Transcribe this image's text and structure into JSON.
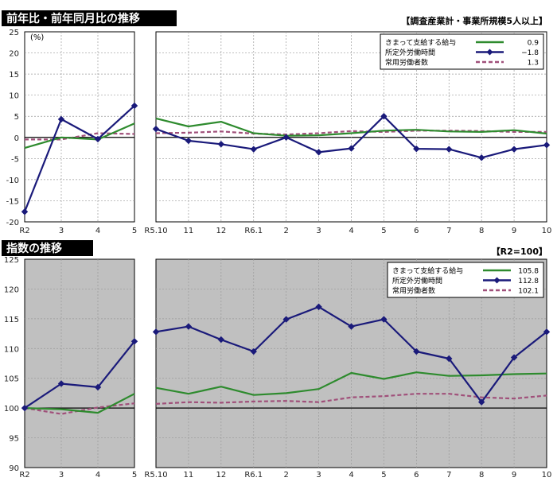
{
  "chart_data": [
    {
      "type": "line",
      "title": "前年比・前年同月比の推移",
      "note": "【調査産業計・事業所規模5人以上】",
      "unit": "(%)",
      "ylim": [
        -20,
        25
      ],
      "yticks": [
        -20,
        -15,
        -10,
        -5,
        0,
        5,
        10,
        15,
        20,
        25
      ],
      "grid": true,
      "background": "white",
      "legend_position": "top-right",
      "panels": [
        {
          "x": [
            "R2",
            "3",
            "4",
            "5"
          ],
          "series": [
            {
              "name": "きまって支給する給与",
              "values": [
                -2.5,
                0.0,
                -0.5,
                3.3
              ]
            },
            {
              "name": "所定外労働時間",
              "values": [
                -17.6,
                4.3,
                -0.4,
                7.5
              ]
            },
            {
              "name": "常用労働者数",
              "values": [
                -0.5,
                -0.5,
                1.0,
                0.8
              ]
            }
          ]
        },
        {
          "x": [
            "R5.10",
            "11",
            "12",
            "R6.1",
            "2",
            "3",
            "4",
            "5",
            "6",
            "7",
            "8",
            "9",
            "10"
          ],
          "series": [
            {
              "name": "きまって支給する給与",
              "values": [
                4.5,
                2.6,
                3.7,
                1.0,
                0.4,
                0.5,
                1.0,
                1.6,
                1.8,
                1.4,
                1.3,
                1.7,
                0.9
              ]
            },
            {
              "name": "所定外労働時間",
              "values": [
                2.0,
                -0.8,
                -1.6,
                -2.8,
                0.0,
                -3.5,
                -2.6,
                5.0,
                -2.7,
                -2.8,
                -4.8,
                -2.8,
                -1.8
              ]
            },
            {
              "name": "常用労働者数",
              "values": [
                1.0,
                1.1,
                1.4,
                0.9,
                0.7,
                1.0,
                1.5,
                1.3,
                1.6,
                1.6,
                1.5,
                1.3,
                1.3
              ]
            }
          ]
        }
      ],
      "legend": [
        {
          "name": "きまって支給する給与",
          "value": "0.9"
        },
        {
          "name": "所定外労働時間",
          "value": "−1.8"
        },
        {
          "name": "常用労働者数",
          "value": "1.3"
        }
      ]
    },
    {
      "type": "line",
      "title": "指数の推移",
      "note": "【R2=100】",
      "ylim": [
        90,
        125
      ],
      "yticks": [
        90,
        95,
        100,
        105,
        110,
        115,
        120,
        125
      ],
      "grid": true,
      "background": "gray",
      "legend_position": "top-right",
      "panels": [
        {
          "x": [
            "R2",
            "3",
            "4",
            "5"
          ],
          "series": [
            {
              "name": "きまって支給する給与",
              "values": [
                100.0,
                99.8,
                99.2,
                102.4
              ]
            },
            {
              "name": "所定外労働時間",
              "values": [
                100.0,
                104.1,
                103.5,
                111.2
              ]
            },
            {
              "name": "常用労働者数",
              "values": [
                100.0,
                99.0,
                100.1,
                100.8
              ]
            }
          ]
        },
        {
          "x": [
            "R5.10",
            "11",
            "12",
            "R6.1",
            "2",
            "3",
            "4",
            "5",
            "6",
            "7",
            "8",
            "9",
            "10"
          ],
          "series": [
            {
              "name": "きまって支給する給与",
              "values": [
                103.4,
                102.4,
                103.6,
                102.2,
                102.5,
                103.2,
                105.9,
                104.9,
                106.0,
                105.4,
                105.5,
                105.7,
                105.8
              ]
            },
            {
              "name": "所定外労働時間",
              "values": [
                112.8,
                113.7,
                111.5,
                109.5,
                114.9,
                117.0,
                113.7,
                114.9,
                109.5,
                108.3,
                101.0,
                108.5,
                112.8
              ]
            },
            {
              "name": "常用労働者数",
              "values": [
                100.7,
                101.0,
                100.9,
                101.1,
                101.2,
                101.0,
                101.8,
                102.0,
                102.4,
                102.4,
                101.8,
                101.6,
                102.1
              ]
            }
          ]
        }
      ],
      "legend": [
        {
          "name": "きまって支給する給与",
          "value": "105.8"
        },
        {
          "name": "所定外労働時間",
          "value": "112.8"
        },
        {
          "name": "常用労働者数",
          "value": "102.1"
        }
      ]
    }
  ],
  "colors": {
    "wage": "#2e8b2e",
    "hours": "#1a1a7a",
    "workers": "#a0507a",
    "plot_gray": "#c0c0c0",
    "grid": "#9a9a9a",
    "zero_line": "#000000"
  }
}
